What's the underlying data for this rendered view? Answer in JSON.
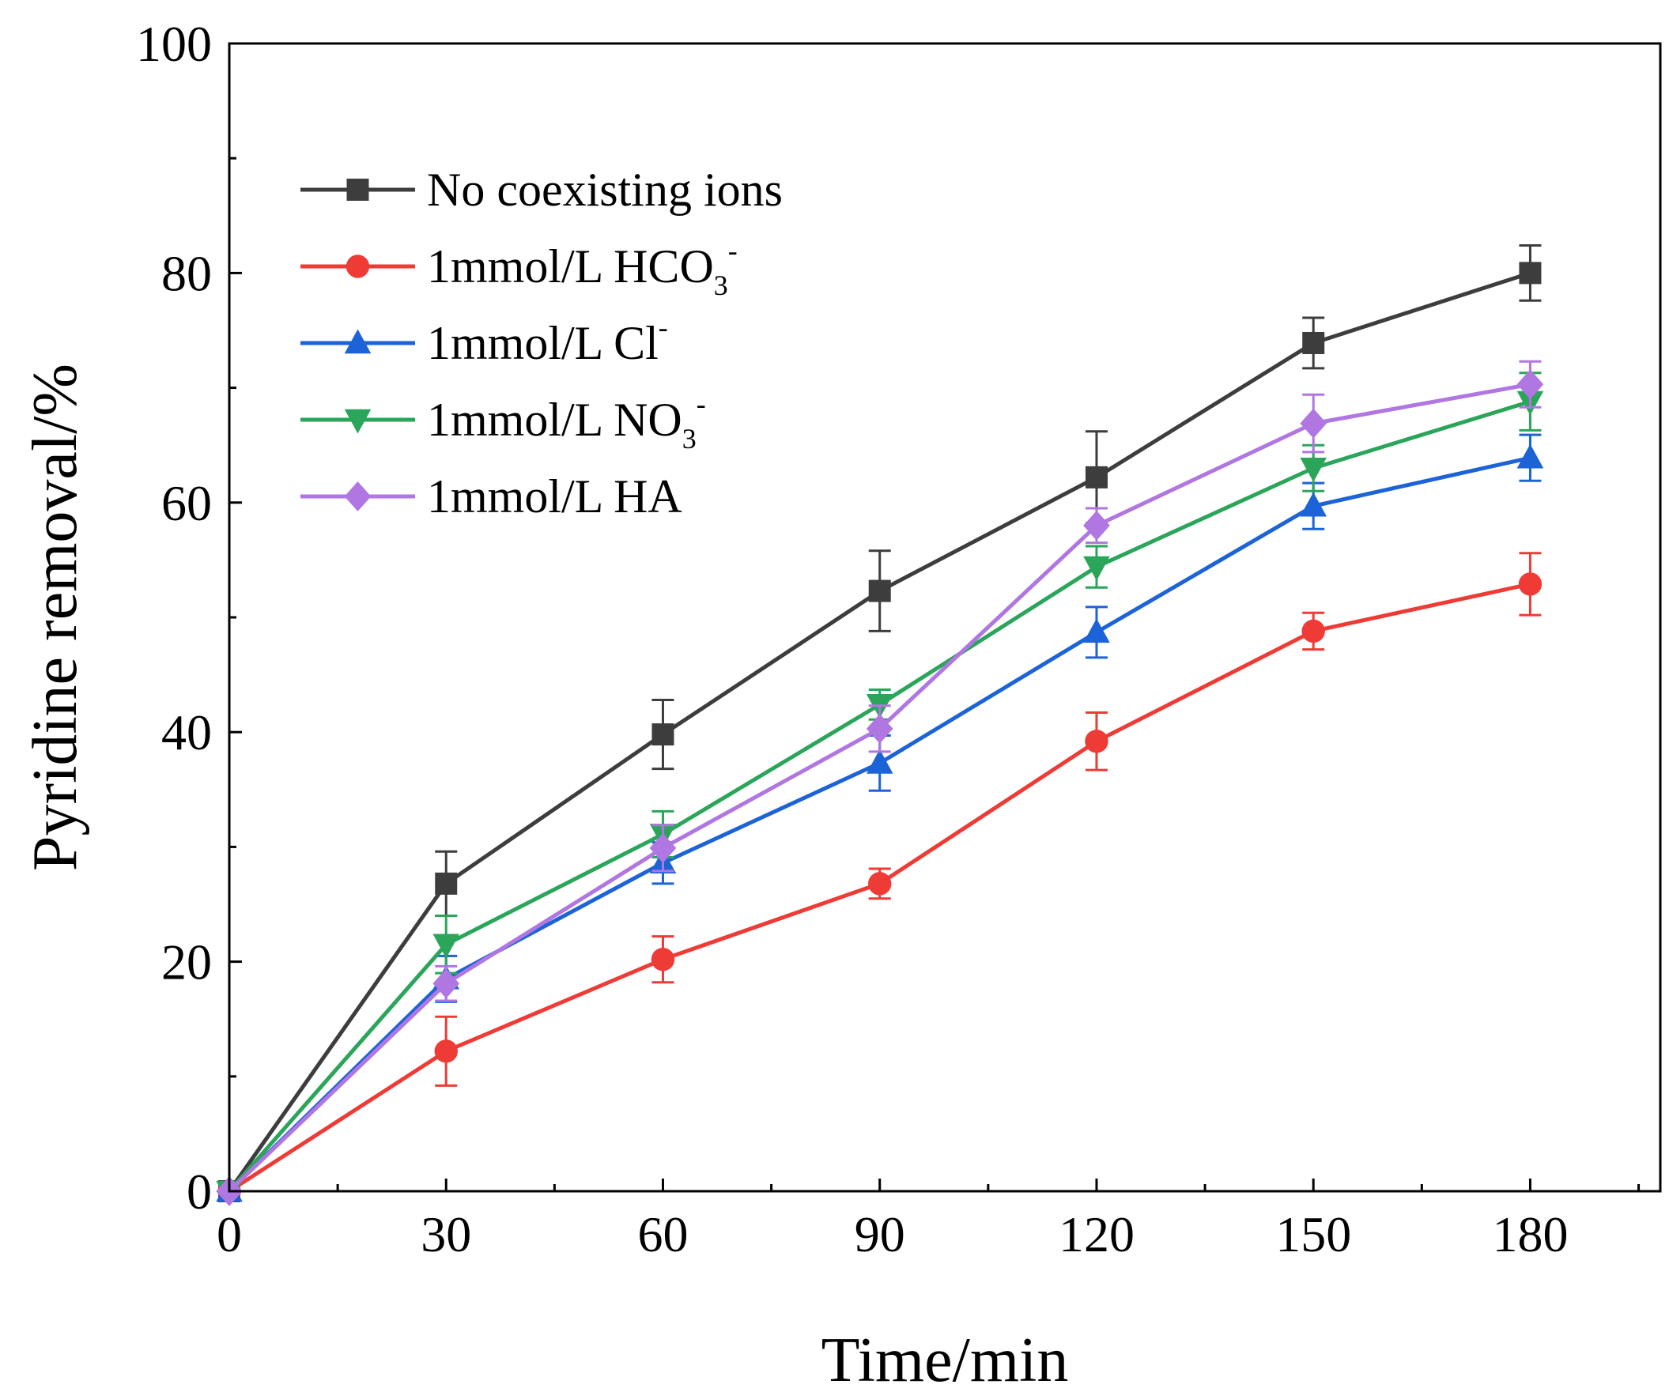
{
  "chart_data": {
    "type": "line",
    "title": "",
    "xlabel": "Time/min",
    "ylabel": "Pyridine removal/%",
    "xlim": [
      0,
      198
    ],
    "ylim": [
      0,
      100
    ],
    "x_ticks": [
      0,
      30,
      60,
      90,
      120,
      150,
      180
    ],
    "x_tick_labels": [
      "0",
      "30",
      "60",
      "90",
      "120",
      "150",
      "180"
    ],
    "y_ticks": [
      0,
      20,
      40,
      60,
      80,
      100
    ],
    "y_tick_labels": [
      "0",
      "20",
      "40",
      "60",
      "80",
      "100"
    ],
    "x": [
      0,
      30,
      60,
      90,
      120,
      150,
      180
    ],
    "legend_position": "top-left",
    "series": [
      {
        "name": "No coexisting ions",
        "label_main": "No coexisting ions",
        "label_script": "",
        "label_sup": "",
        "marker": "square",
        "color": "#3d3d3d",
        "values": [
          0,
          26.8,
          39.8,
          52.3,
          62.2,
          73.9,
          80.0
        ],
        "errors": [
          0,
          2.8,
          3.0,
          3.5,
          4.0,
          2.2,
          2.4
        ]
      },
      {
        "name": "1mmol/L HCO3-",
        "label_main": "1mmol/L HCO",
        "label_script": "3",
        "label_sup": "-",
        "marker": "circle",
        "color": "#ef3b36",
        "values": [
          0,
          12.2,
          20.2,
          26.8,
          39.2,
          48.8,
          52.9
        ],
        "errors": [
          0,
          3.0,
          2.0,
          1.3,
          2.5,
          1.6,
          2.7
        ]
      },
      {
        "name": "1mmol/L Cl-",
        "label_main": "1mmol/L Cl",
        "label_script": "",
        "label_sup": "-",
        "marker": "triangle-up",
        "color": "#1d63d8",
        "values": [
          0,
          18.5,
          28.6,
          37.3,
          48.7,
          59.7,
          63.9
        ],
        "errors": [
          0,
          2.0,
          1.8,
          2.4,
          2.2,
          2.0,
          2.0
        ]
      },
      {
        "name": "1mmol/L NO3-",
        "label_main": "1mmol/L NO",
        "label_script": "3",
        "label_sup": "-",
        "marker": "triangle-down",
        "color": "#2aa55a",
        "values": [
          0,
          21.5,
          31.1,
          42.4,
          54.4,
          63.0,
          68.8
        ],
        "errors": [
          0,
          2.5,
          2.0,
          1.3,
          1.8,
          2.0,
          2.5
        ]
      },
      {
        "name": "1mmol/L HA",
        "label_main": "1mmol/L HA",
        "label_script": "",
        "label_sup": "",
        "marker": "diamond",
        "color": "#b076e2",
        "values": [
          0,
          18.1,
          29.9,
          40.3,
          58.0,
          66.9,
          70.3
        ],
        "errors": [
          0,
          1.5,
          2.0,
          2.0,
          1.5,
          2.5,
          2.0
        ]
      }
    ]
  }
}
